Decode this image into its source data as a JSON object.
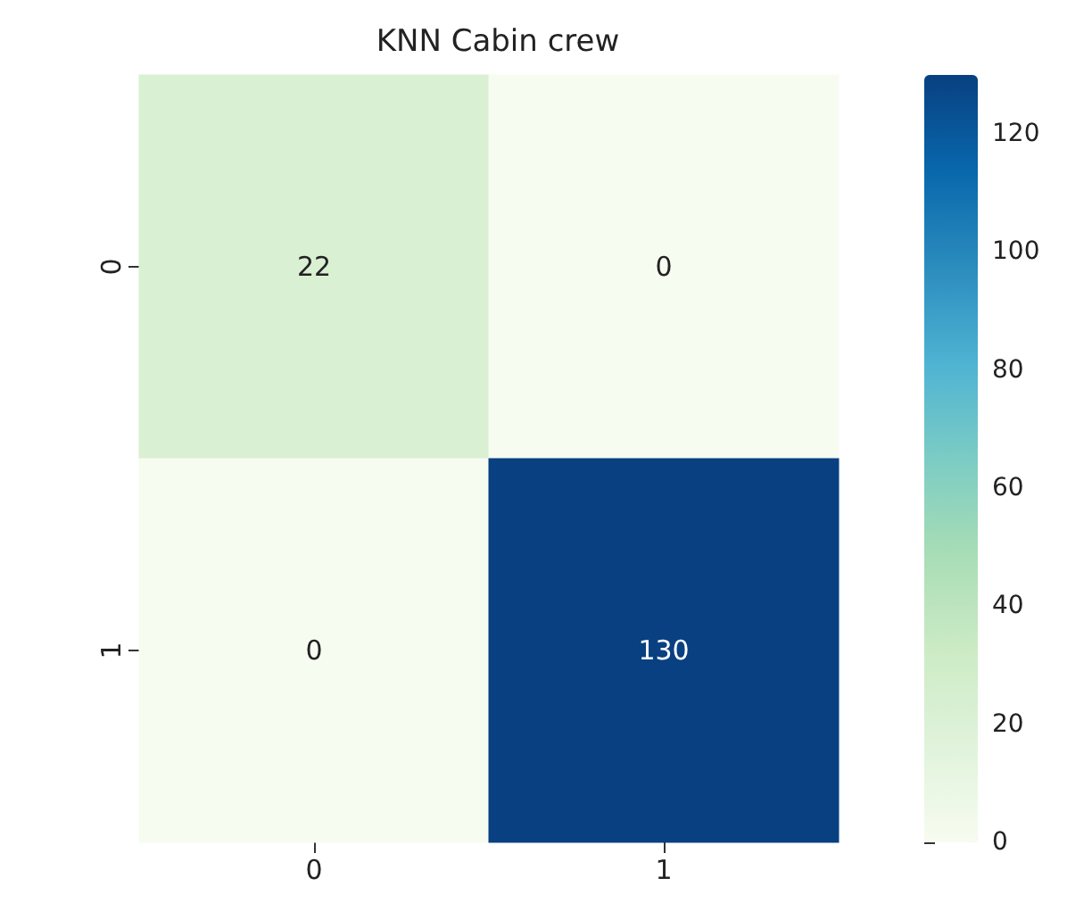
{
  "chart_data": {
    "type": "heatmap",
    "title": "KNN Cabin crew",
    "categories": [
      "0",
      "1"
    ],
    "y_categories": [
      "0",
      "1"
    ],
    "cells": [
      [
        22,
        0
      ],
      [
        0,
        130
      ]
    ],
    "clim": [
      0,
      130
    ],
    "cticks": [
      0,
      20,
      40,
      60,
      80,
      100,
      120
    ],
    "data_labels": true
  }
}
